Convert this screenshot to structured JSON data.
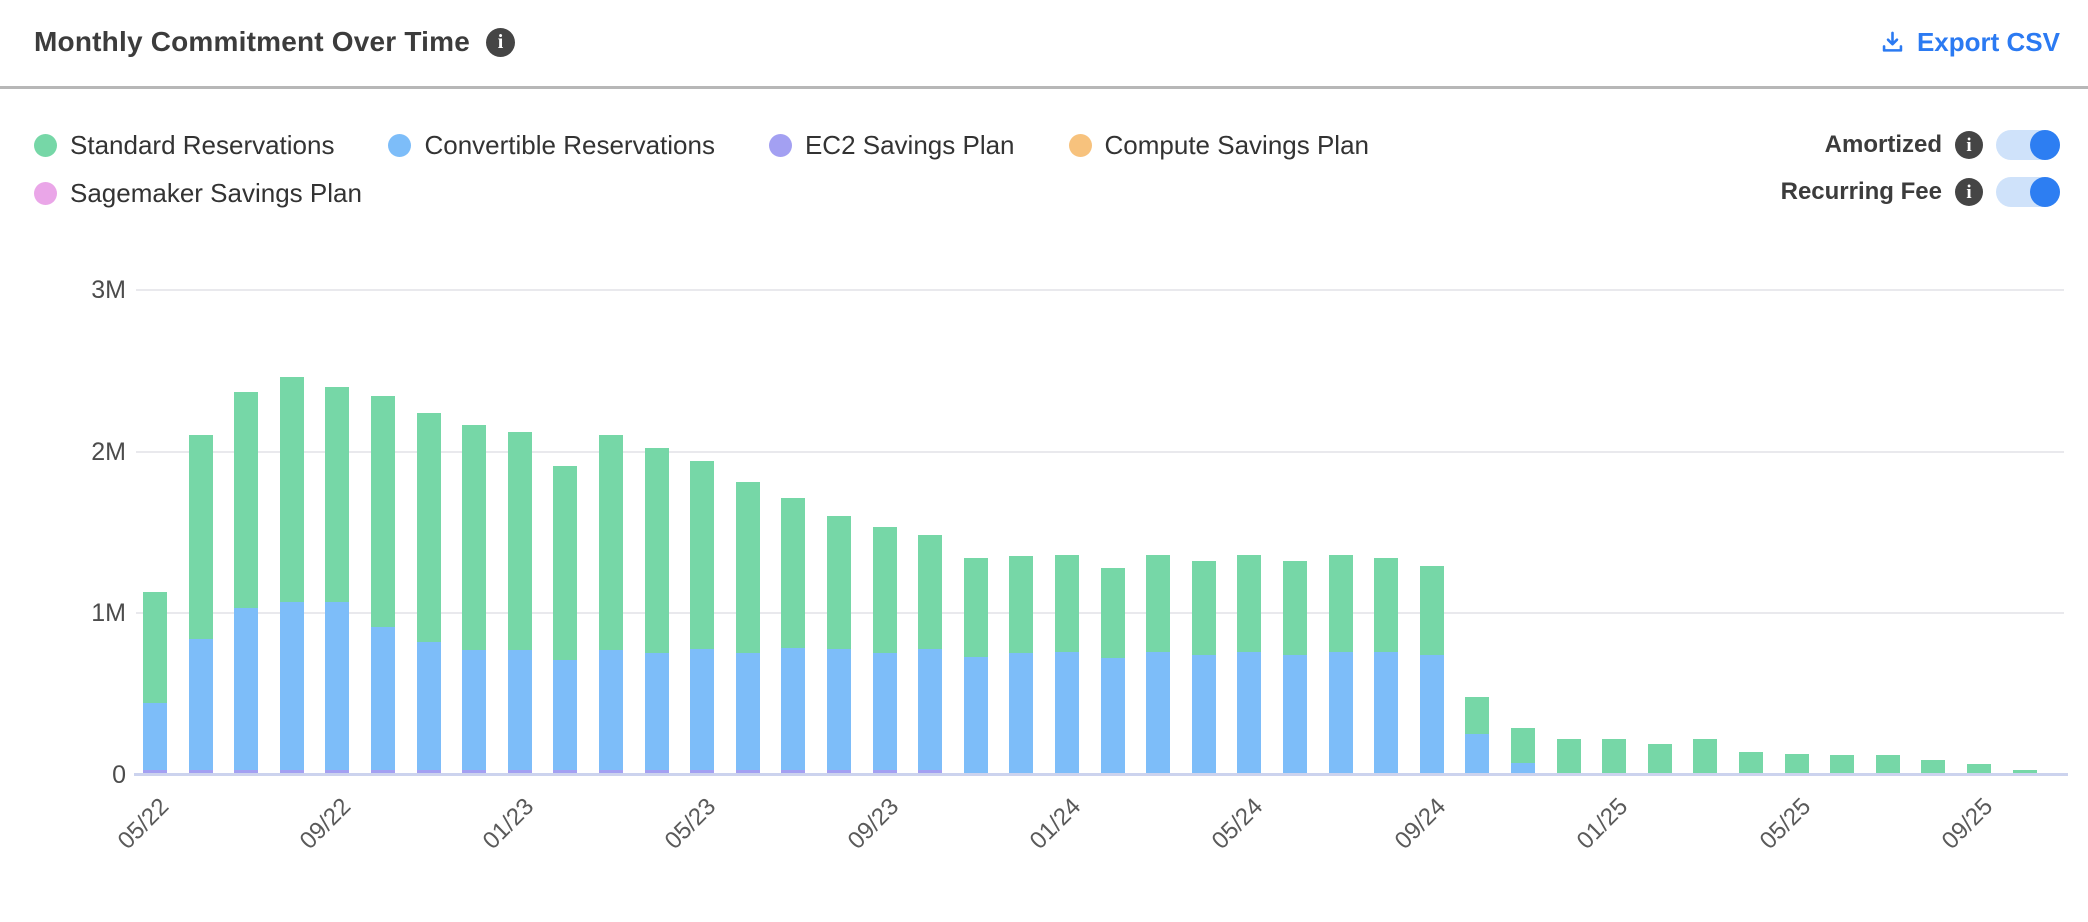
{
  "header": {
    "title": "Monthly Commitment Over Time",
    "export_label": "Export CSV",
    "export_color": "#2b7af2",
    "info_glyph": "i"
  },
  "legend": {
    "items": [
      {
        "label": "Standard Reservations",
        "color": "#76d7a7"
      },
      {
        "label": "Convertible Reservations",
        "color": "#7dbdf9"
      },
      {
        "label": "EC2 Savings Plan",
        "color": "#a3a0f2"
      },
      {
        "label": "Compute Savings Plan",
        "color": "#f7c27d"
      },
      {
        "label": "Sagemaker Savings Plan",
        "color": "#eaa6e8"
      }
    ]
  },
  "toggles": [
    {
      "label": "Amortized",
      "on": true
    },
    {
      "label": "Recurring Fee",
      "on": true
    }
  ],
  "chart_data": {
    "type": "bar",
    "stacked": true,
    "title": "Monthly Commitment Over Time",
    "xlabel": "",
    "ylabel": "",
    "values_unit": "millions",
    "ylim_millions": [
      0,
      3
    ],
    "y_tick_labels": [
      "0",
      "1M",
      "2M",
      "3M"
    ],
    "x_tick_every": 4,
    "grid": true,
    "legend_position": "top-left",
    "categories": [
      "05/22",
      "06/22",
      "07/22",
      "08/22",
      "09/22",
      "10/22",
      "11/22",
      "12/22",
      "01/23",
      "02/23",
      "03/23",
      "04/23",
      "05/23",
      "06/23",
      "07/23",
      "08/23",
      "09/23",
      "10/23",
      "11/23",
      "12/23",
      "01/24",
      "02/24",
      "03/24",
      "04/24",
      "05/24",
      "06/24",
      "07/24",
      "08/24",
      "09/24",
      "10/24",
      "11/24",
      "12/24",
      "01/25",
      "02/25",
      "03/25",
      "04/25",
      "05/25",
      "06/25",
      "07/25",
      "08/25",
      "09/25",
      "10/25"
    ],
    "series": [
      {
        "name": "Standard Reservations",
        "color": "#76d7a7",
        "values": [
          0.69,
          1.26,
          1.34,
          1.39,
          1.33,
          1.43,
          1.42,
          1.39,
          1.35,
          1.2,
          1.33,
          1.27,
          1.16,
          1.06,
          0.93,
          0.82,
          0.78,
          0.7,
          0.61,
          0.6,
          0.6,
          0.56,
          0.6,
          0.58,
          0.6,
          0.58,
          0.6,
          0.58,
          0.55,
          0.23,
          0.22,
          0.21,
          0.21,
          0.18,
          0.21,
          0.13,
          0.12,
          0.11,
          0.11,
          0.08,
          0.055,
          0.02
        ]
      },
      {
        "name": "Convertible Reservations",
        "color": "#7dbdf9",
        "values": [
          0.41,
          0.81,
          1.0,
          1.04,
          1.04,
          0.88,
          0.79,
          0.74,
          0.74,
          0.68,
          0.74,
          0.72,
          0.75,
          0.72,
          0.75,
          0.75,
          0.72,
          0.75,
          0.72,
          0.74,
          0.75,
          0.71,
          0.75,
          0.73,
          0.75,
          0.73,
          0.75,
          0.75,
          0.73,
          0.24,
          0.06,
          0,
          0,
          0,
          0,
          0,
          0,
          0,
          0,
          0,
          0,
          0
        ]
      },
      {
        "name": "EC2 Savings Plan",
        "color": "#a3a0f2",
        "values": [
          0.02,
          0.02,
          0.02,
          0.02,
          0.02,
          0.02,
          0.02,
          0.02,
          0.02,
          0.02,
          0.02,
          0.02,
          0.02,
          0.02,
          0.02,
          0.02,
          0.02,
          0.02,
          0,
          0,
          0,
          0,
          0,
          0,
          0,
          0,
          0,
          0,
          0,
          0,
          0,
          0,
          0,
          0,
          0,
          0,
          0,
          0,
          0,
          0,
          0,
          0
        ]
      },
      {
        "name": "Compute Savings Plan",
        "color": "#f7c27d",
        "values": [
          0,
          0,
          0,
          0,
          0,
          0,
          0,
          0,
          0,
          0,
          0,
          0,
          0,
          0,
          0,
          0,
          0,
          0,
          0,
          0,
          0,
          0,
          0,
          0,
          0,
          0,
          0,
          0,
          0,
          0,
          0,
          0,
          0,
          0,
          0,
          0,
          0,
          0,
          0,
          0,
          0,
          0
        ]
      },
      {
        "name": "Sagemaker Savings Plan",
        "color": "#eaa6e8",
        "values": [
          0,
          0,
          0,
          0,
          0,
          0,
          0,
          0,
          0,
          0,
          0,
          0,
          0,
          0,
          0,
          0,
          0,
          0,
          0,
          0,
          0,
          0,
          0,
          0,
          0,
          0,
          0,
          0,
          0,
          0,
          0,
          0,
          0,
          0,
          0,
          0,
          0,
          0,
          0,
          0,
          0,
          0
        ]
      }
    ]
  }
}
